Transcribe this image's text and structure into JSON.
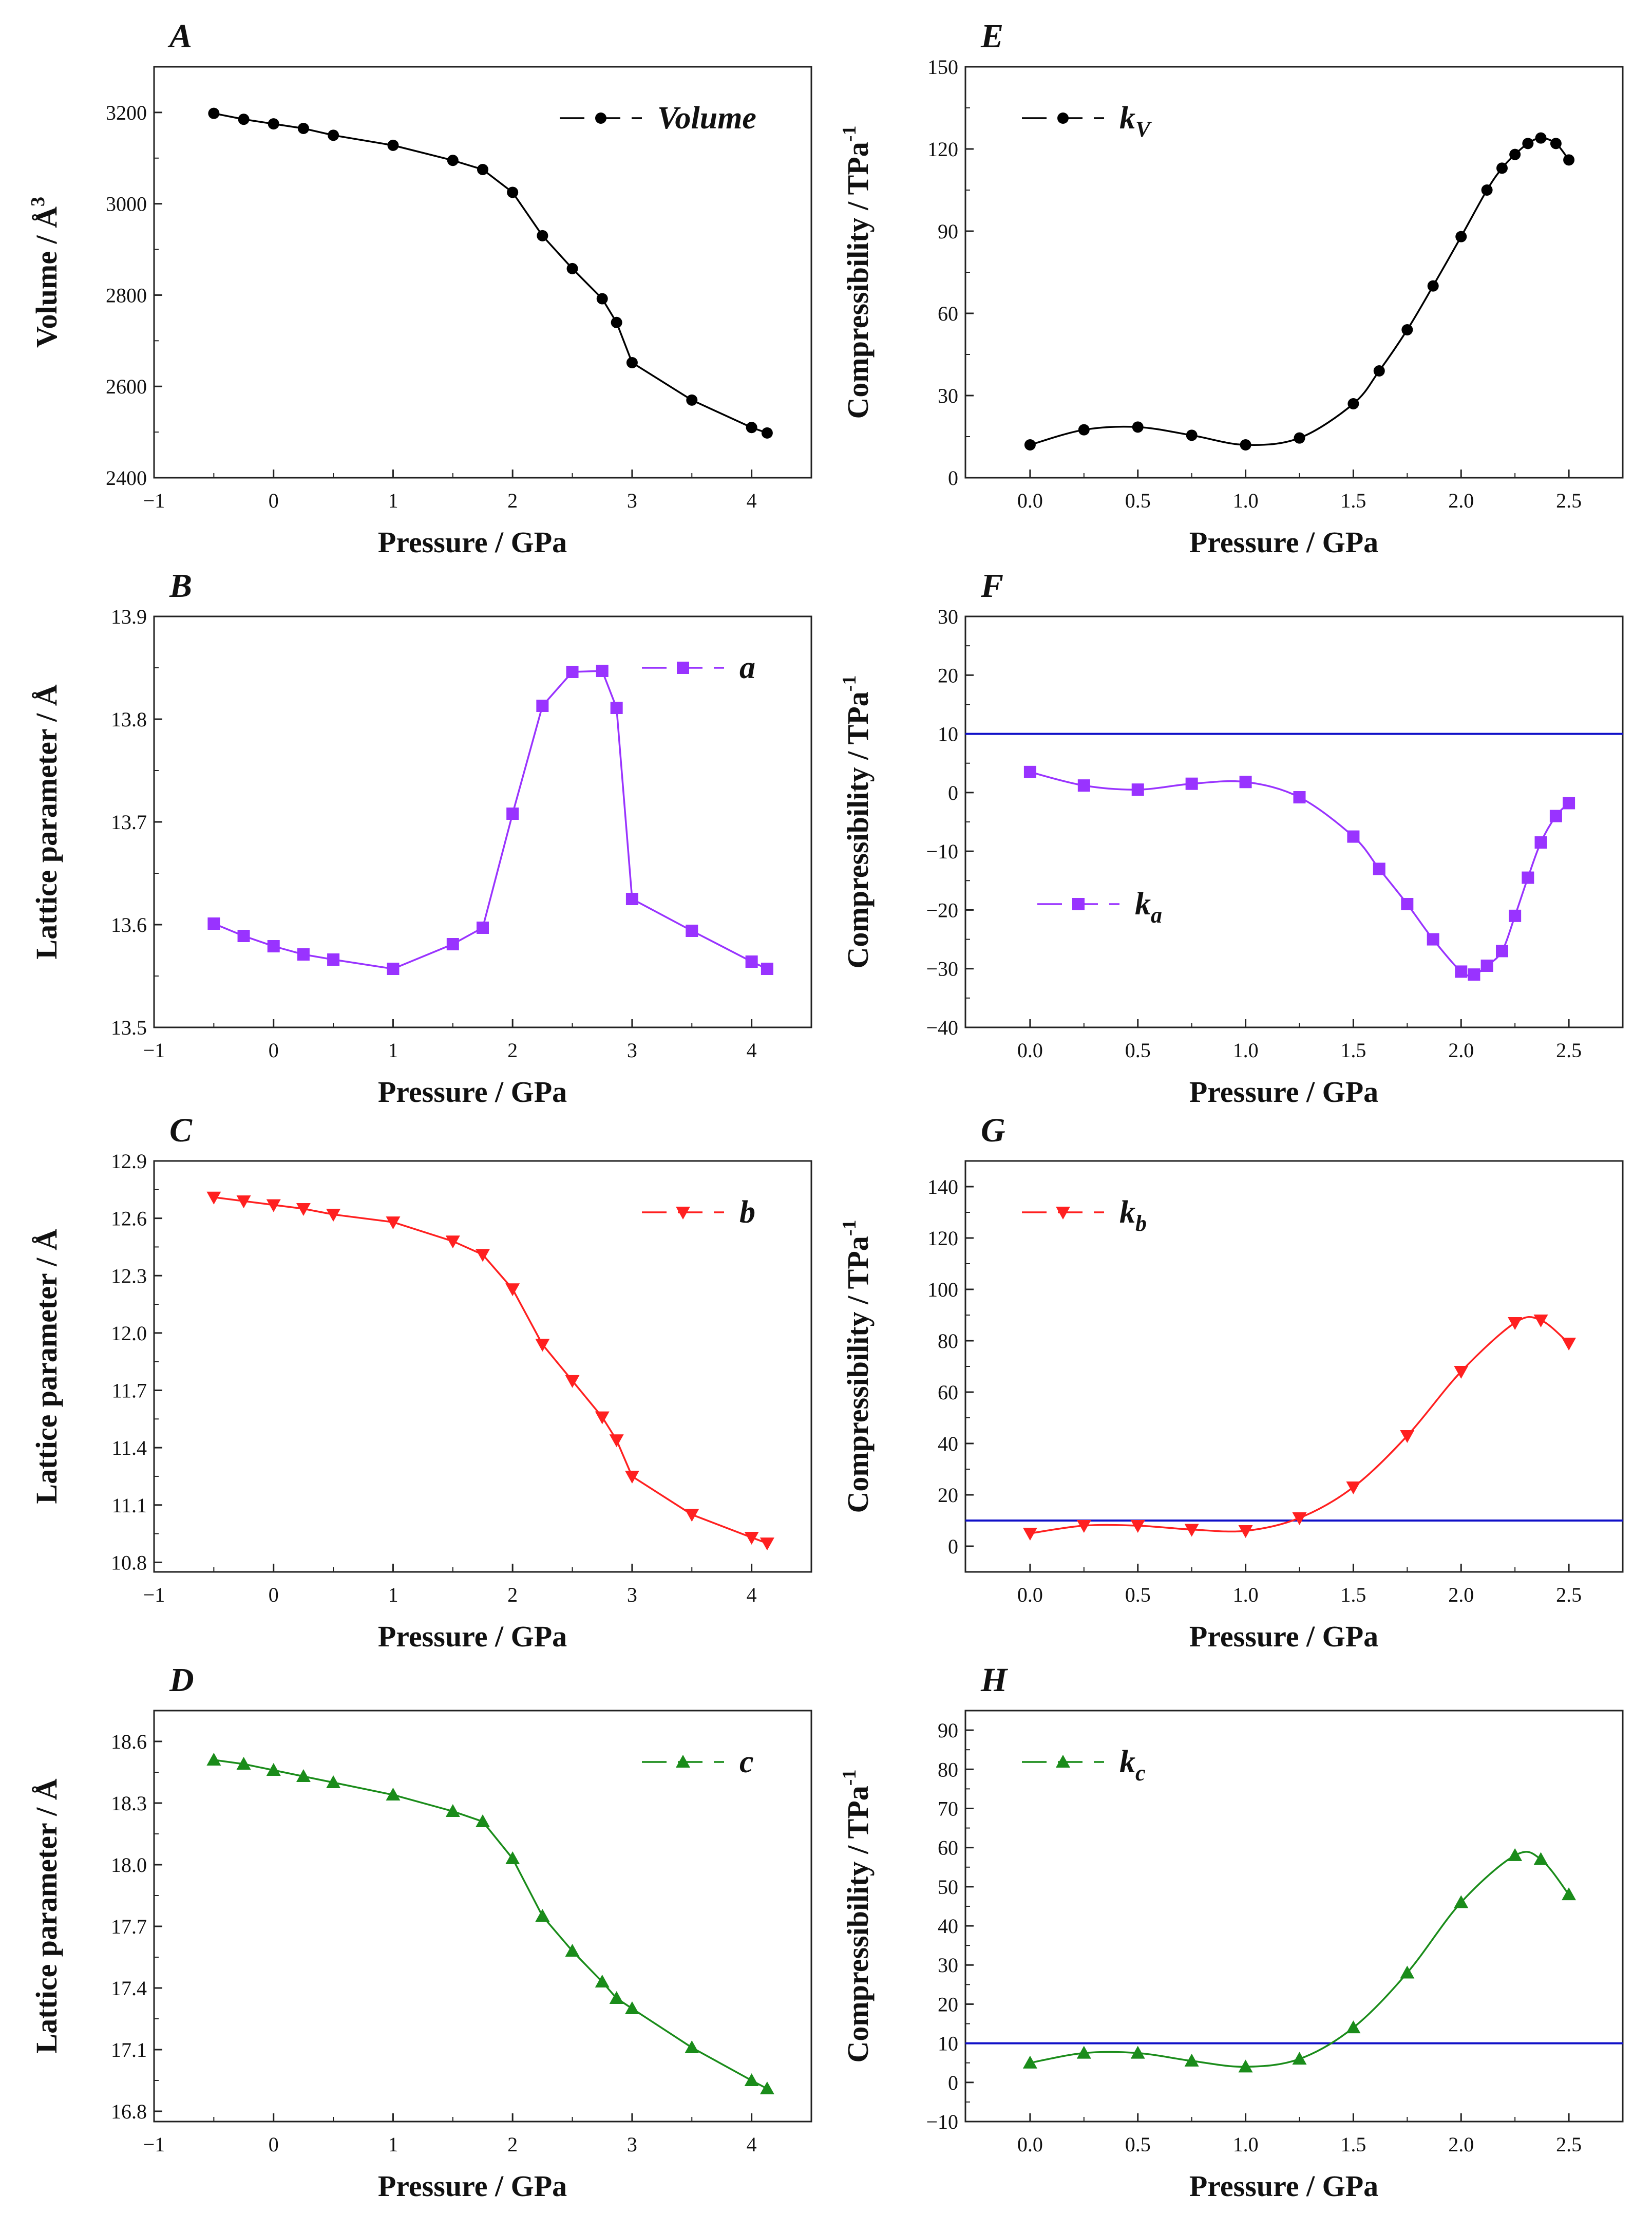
{
  "chart_data": [
    {
      "panel": "A",
      "type": "line",
      "color": "#000000",
      "marker": "circle",
      "xlabel": "Pressure / GPa",
      "ylabel": "Volume / Å",
      "ylabel_sup": "3",
      "legend": "Volume",
      "legend_sub": "",
      "xlim": [
        -1,
        4.5
      ],
      "xticks": [
        -1,
        0,
        1,
        2,
        3,
        4
      ],
      "xdec": 0,
      "ylim": [
        2400,
        3300
      ],
      "yticks": [
        2400,
        2600,
        2800,
        3000,
        3200
      ],
      "ydec": 0,
      "ref_line": null,
      "x": [
        -0.5,
        -0.25,
        0,
        0.25,
        0.5,
        1.0,
        1.5,
        1.75,
        2.0,
        2.25,
        2.5,
        2.75,
        2.87,
        3.0,
        3.5,
        4.0,
        4.13
      ],
      "y": [
        3198,
        3185,
        3175,
        3165,
        3150,
        3128,
        3095,
        3075,
        3025,
        2930,
        2858,
        2792,
        2740,
        2652,
        2570,
        2510,
        2498
      ]
    },
    {
      "panel": "B",
      "type": "line",
      "color": "#9933ff",
      "marker": "square",
      "xlabel": "Pressure / GPa",
      "ylabel": "Lattice parameter / Å",
      "ylabel_sup": "",
      "legend": "a",
      "legend_sub": "",
      "xlim": [
        -1,
        4.5
      ],
      "xticks": [
        -1,
        0,
        1,
        2,
        3,
        4
      ],
      "xdec": 0,
      "ylim": [
        13.5,
        13.9
      ],
      "yticks": [
        13.5,
        13.6,
        13.7,
        13.8,
        13.9
      ],
      "ydec": 1,
      "ref_line": null,
      "x": [
        -0.5,
        -0.25,
        0,
        0.25,
        0.5,
        1.0,
        1.5,
        1.75,
        2.0,
        2.25,
        2.5,
        2.75,
        2.87,
        3.0,
        3.5,
        4.0,
        4.13
      ],
      "y": [
        13.601,
        13.589,
        13.579,
        13.571,
        13.566,
        13.557,
        13.581,
        13.597,
        13.708,
        13.813,
        13.846,
        13.847,
        13.811,
        13.625,
        13.594,
        13.564,
        13.557
      ]
    },
    {
      "panel": "C",
      "type": "line",
      "color": "#ff2020",
      "marker": "triangle-down",
      "xlabel": "Pressure / GPa",
      "ylabel": "Lattice parameter / Å",
      "ylabel_sup": "",
      "legend": "b",
      "legend_sub": "",
      "xlim": [
        -1,
        4.5
      ],
      "xticks": [
        -1,
        0,
        1,
        2,
        3,
        4
      ],
      "xdec": 0,
      "ylim": [
        10.75,
        12.9
      ],
      "yticks": [
        10.8,
        11.1,
        11.4,
        11.7,
        12.0,
        12.3,
        12.6,
        12.9
      ],
      "ydec": 1,
      "ref_line": null,
      "x": [
        -0.5,
        -0.25,
        0,
        0.25,
        0.5,
        1.0,
        1.5,
        1.75,
        2.0,
        2.25,
        2.5,
        2.75,
        2.87,
        3.0,
        3.5,
        4.0,
        4.13
      ],
      "y": [
        12.71,
        12.69,
        12.67,
        12.65,
        12.62,
        12.58,
        12.48,
        12.41,
        12.23,
        11.94,
        11.75,
        11.56,
        11.44,
        11.25,
        11.05,
        10.93,
        10.9
      ]
    },
    {
      "panel": "D",
      "type": "line",
      "color": "#1a8c1a",
      "marker": "triangle-up",
      "xlabel": "Pressure / GPa",
      "ylabel": "Lattice parameter / Å",
      "ylabel_sup": "",
      "legend": "c",
      "legend_sub": "",
      "xlim": [
        -1,
        4.5
      ],
      "xticks": [
        -1,
        0,
        1,
        2,
        3,
        4
      ],
      "xdec": 0,
      "ylim": [
        16.75,
        18.75
      ],
      "yticks": [
        16.8,
        17.1,
        17.4,
        17.7,
        18.0,
        18.3,
        18.6
      ],
      "ydec": 1,
      "ref_line": null,
      "x": [
        -0.5,
        -0.25,
        0,
        0.25,
        0.5,
        1.0,
        1.5,
        1.75,
        2.0,
        2.25,
        2.5,
        2.75,
        2.87,
        3.0,
        3.5,
        4.0,
        4.13
      ],
      "y": [
        18.51,
        18.49,
        18.46,
        18.43,
        18.4,
        18.34,
        18.26,
        18.21,
        18.03,
        17.75,
        17.58,
        17.43,
        17.35,
        17.3,
        17.11,
        16.95,
        16.91
      ]
    },
    {
      "panel": "E",
      "type": "line",
      "color": "#000000",
      "marker": "circle",
      "xlabel": "Pressure / GPa",
      "ylabel": "Compressibility / TPa",
      "ylabel_sup": "-1",
      "legend": "k",
      "legend_sub": "V",
      "xlim": [
        -0.3,
        2.75
      ],
      "xticks": [
        0,
        0.5,
        1,
        1.5,
        2,
        2.5
      ],
      "xdec": 1,
      "ylim": [
        0,
        150
      ],
      "yticks": [
        0,
        30,
        60,
        90,
        120,
        150
      ],
      "ydec": 0,
      "ref_line": null,
      "x": [
        0.0,
        0.25,
        0.5,
        0.75,
        1.0,
        1.25,
        1.5,
        1.62,
        1.75,
        1.87,
        2.0,
        2.12,
        2.19,
        2.25,
        2.31,
        2.37,
        2.44,
        2.5
      ],
      "y": [
        12,
        17.5,
        18.5,
        15.5,
        12,
        14.5,
        27,
        39,
        54,
        70,
        88,
        105,
        113,
        118,
        122,
        124,
        122,
        116
      ]
    },
    {
      "panel": "F",
      "type": "line",
      "color": "#9933ff",
      "marker": "square",
      "xlabel": "Pressure / GPa",
      "ylabel": "Compressibility / TPa",
      "ylabel_sup": "-1",
      "legend": "k",
      "legend_sub": "a",
      "xlim": [
        -0.3,
        2.75
      ],
      "xticks": [
        0,
        0.5,
        1,
        1.5,
        2,
        2.5
      ],
      "xdec": 1,
      "ylim": [
        -40,
        30
      ],
      "yticks": [
        -40,
        -30,
        -20,
        -10,
        0,
        10,
        20,
        30
      ],
      "ydec": 0,
      "ref_line": 10,
      "x": [
        0.0,
        0.25,
        0.5,
        0.75,
        1.0,
        1.25,
        1.5,
        1.62,
        1.75,
        1.87,
        2.0,
        2.06,
        2.12,
        2.19,
        2.25,
        2.31,
        2.37,
        2.44,
        2.5
      ],
      "y": [
        3.5,
        1.2,
        0.5,
        1.5,
        1.8,
        -0.8,
        -7.5,
        -13,
        -19,
        -25,
        -30.5,
        -31,
        -29.5,
        -27,
        -21,
        -14.5,
        -8.5,
        -4,
        -1.8
      ]
    },
    {
      "panel": "G",
      "type": "line",
      "color": "#ff2020",
      "marker": "triangle-down",
      "xlabel": "Pressure / GPa",
      "ylabel": "Compressibility / TPa",
      "ylabel_sup": "-1",
      "legend": "k",
      "legend_sub": "b",
      "xlim": [
        -0.3,
        2.75
      ],
      "xticks": [
        0,
        0.5,
        1,
        1.5,
        2,
        2.5
      ],
      "xdec": 1,
      "ylim": [
        -10,
        150
      ],
      "yticks": [
        0,
        20,
        40,
        60,
        80,
        100,
        120,
        140
      ],
      "ydec": 0,
      "ref_line": 10,
      "x": [
        0.0,
        0.25,
        0.5,
        0.75,
        1.0,
        1.25,
        1.5,
        1.75,
        2.0,
        2.25,
        2.37,
        2.5
      ],
      "y": [
        5,
        8,
        8,
        6.5,
        6,
        11,
        23,
        43,
        68,
        87,
        88,
        79
      ]
    },
    {
      "panel": "H",
      "type": "line",
      "color": "#1a8c1a",
      "marker": "triangle-up",
      "xlabel": "Pressure / GPa",
      "ylabel": "Compressibility / TPa",
      "ylabel_sup": "-1",
      "legend": "k",
      "legend_sub": "c",
      "xlim": [
        -0.3,
        2.75
      ],
      "xticks": [
        0,
        0.5,
        1,
        1.5,
        2,
        2.5
      ],
      "xdec": 1,
      "ylim": [
        -10,
        95
      ],
      "yticks": [
        -10,
        0,
        10,
        20,
        30,
        40,
        50,
        60,
        70,
        80,
        90
      ],
      "ydec": 0,
      "ref_line": 10,
      "x": [
        0.0,
        0.25,
        0.5,
        0.75,
        1.0,
        1.25,
        1.5,
        1.75,
        2.0,
        2.25,
        2.37,
        2.5
      ],
      "y": [
        5,
        7.5,
        7.5,
        5.5,
        4,
        6,
        14,
        28,
        46,
        58,
        57,
        48
      ]
    }
  ]
}
